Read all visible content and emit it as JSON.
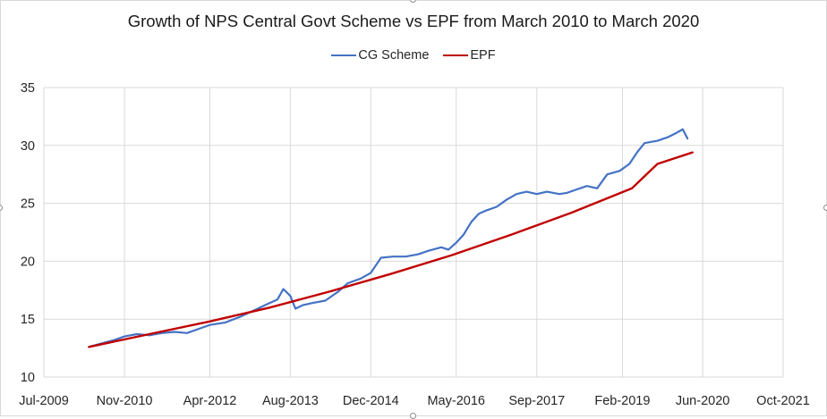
{
  "chart_data": {
    "type": "line",
    "title": "Growth of NPS Central Govt Scheme vs EPF from March 2010 to March 2020",
    "xlabel": "",
    "ylabel": "",
    "legend_position": "top",
    "grid": true,
    "ylim": [
      10,
      35
    ],
    "yticks": [
      10,
      15,
      20,
      25,
      30,
      35
    ],
    "xlim": [
      "2009-07-01",
      "2021-10-01"
    ],
    "xtick_dates": [
      "2009-07-01",
      "2010-11-01",
      "2012-04-01",
      "2013-08-01",
      "2014-12-01",
      "2016-05-01",
      "2017-09-01",
      "2019-02-01",
      "2020-06-01",
      "2021-10-01"
    ],
    "xtick_labels": [
      "Jul-2009",
      "Nov-2010",
      "Apr-2012",
      "Aug-2013",
      "Dec-2014",
      "May-2016",
      "Sep-2017",
      "Feb-2019",
      "Jun-2020",
      "Oct-2021"
    ],
    "series": [
      {
        "name": "CG Scheme",
        "color": "#4472c4",
        "points": [
          [
            "2010-03-31",
            12.6
          ],
          [
            "2010-06-15",
            12.9
          ],
          [
            "2010-09-01",
            13.2
          ],
          [
            "2010-11-01",
            13.5
          ],
          [
            "2011-01-15",
            13.7
          ],
          [
            "2011-04-01",
            13.6
          ],
          [
            "2011-06-15",
            13.8
          ],
          [
            "2011-09-01",
            13.9
          ],
          [
            "2011-11-15",
            13.8
          ],
          [
            "2012-02-01",
            14.2
          ],
          [
            "2012-04-01",
            14.5
          ],
          [
            "2012-07-01",
            14.7
          ],
          [
            "2012-10-01",
            15.2
          ],
          [
            "2013-01-01",
            15.8
          ],
          [
            "2013-03-15",
            16.3
          ],
          [
            "2013-05-15",
            16.7
          ],
          [
            "2013-06-20",
            17.6
          ],
          [
            "2013-08-01",
            17.0
          ],
          [
            "2013-09-01",
            15.9
          ],
          [
            "2013-10-15",
            16.2
          ],
          [
            "2013-12-15",
            16.4
          ],
          [
            "2014-03-01",
            16.6
          ],
          [
            "2014-05-20",
            17.4
          ],
          [
            "2014-07-15",
            18.1
          ],
          [
            "2014-10-01",
            18.5
          ],
          [
            "2014-12-01",
            19.0
          ],
          [
            "2015-02-01",
            20.3
          ],
          [
            "2015-04-15",
            20.4
          ],
          [
            "2015-07-01",
            20.4
          ],
          [
            "2015-09-15",
            20.6
          ],
          [
            "2015-11-15",
            20.9
          ],
          [
            "2016-02-01",
            21.2
          ],
          [
            "2016-03-15",
            21.0
          ],
          [
            "2016-05-01",
            21.6
          ],
          [
            "2016-06-15",
            22.3
          ],
          [
            "2016-08-01",
            23.4
          ],
          [
            "2016-09-15",
            24.1
          ],
          [
            "2016-11-01",
            24.4
          ],
          [
            "2017-01-01",
            24.7
          ],
          [
            "2017-03-01",
            25.3
          ],
          [
            "2017-05-01",
            25.8
          ],
          [
            "2017-07-01",
            26.0
          ],
          [
            "2017-09-01",
            25.8
          ],
          [
            "2017-11-01",
            26.0
          ],
          [
            "2018-01-15",
            25.8
          ],
          [
            "2018-03-01",
            25.9
          ],
          [
            "2018-05-01",
            26.2
          ],
          [
            "2018-07-01",
            26.5
          ],
          [
            "2018-09-01",
            26.3
          ],
          [
            "2018-11-01",
            27.5
          ],
          [
            "2019-01-15",
            27.8
          ],
          [
            "2019-03-15",
            28.4
          ],
          [
            "2019-05-01",
            29.4
          ],
          [
            "2019-06-15",
            30.2
          ],
          [
            "2019-09-01",
            30.4
          ],
          [
            "2019-11-01",
            30.7
          ],
          [
            "2019-12-15",
            31.0
          ],
          [
            "2020-02-01",
            31.4
          ],
          [
            "2020-03-01",
            30.6
          ]
        ]
      },
      {
        "name": "EPF",
        "color": "#c00000",
        "points": [
          [
            "2010-03-31",
            12.6
          ],
          [
            "2011-03-31",
            13.7
          ],
          [
            "2012-03-31",
            14.8
          ],
          [
            "2013-03-31",
            16.0
          ],
          [
            "2014-03-31",
            17.4
          ],
          [
            "2015-03-31",
            18.9
          ],
          [
            "2016-03-31",
            20.5
          ],
          [
            "2017-03-31",
            22.3
          ],
          [
            "2018-03-31",
            24.2
          ],
          [
            "2019-03-31",
            26.3
          ],
          [
            "2019-09-01",
            28.4
          ],
          [
            "2020-03-31",
            29.4
          ]
        ]
      }
    ]
  }
}
